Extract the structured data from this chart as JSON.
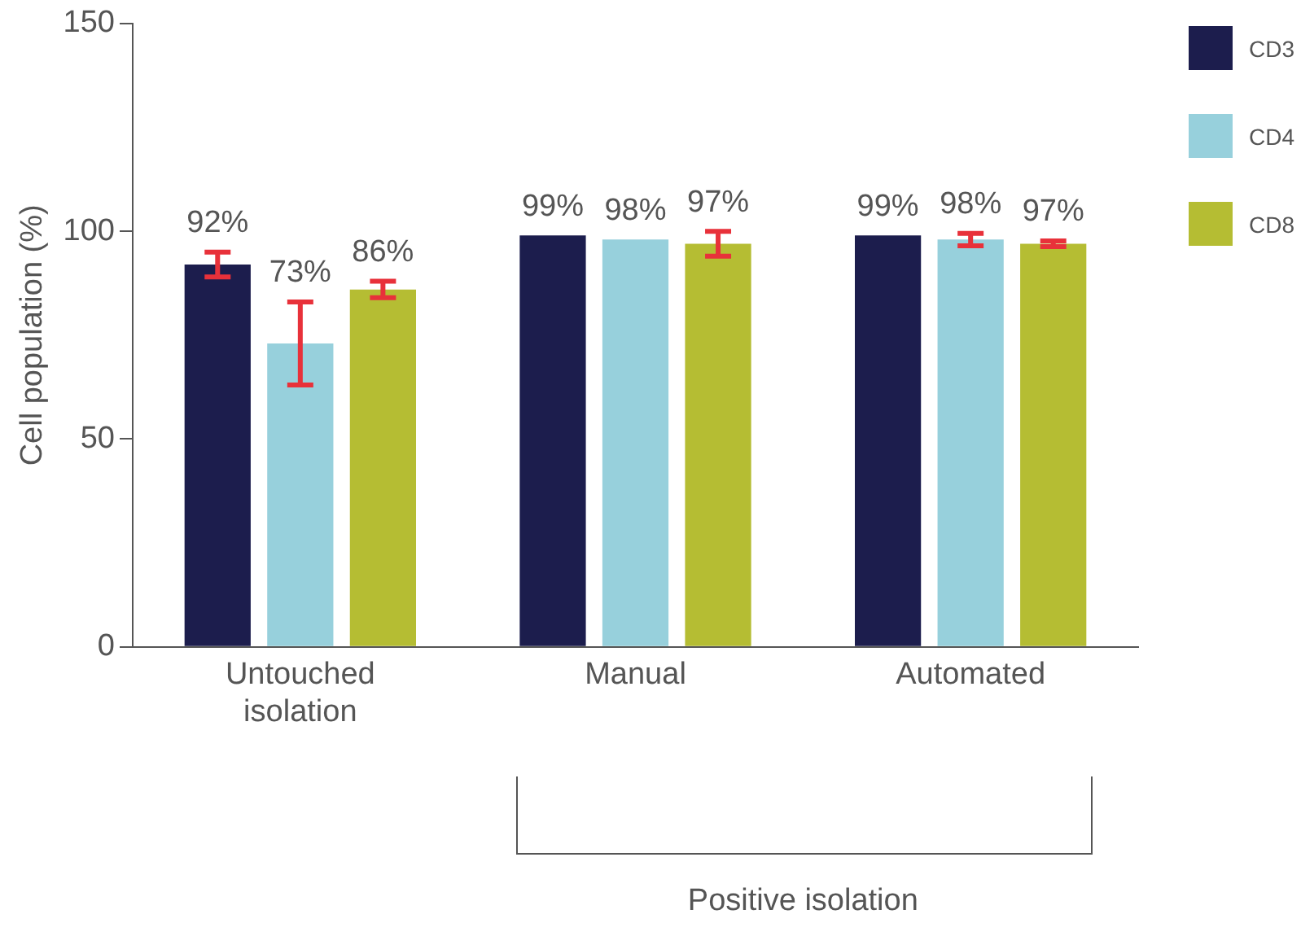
{
  "chart_data": {
    "type": "bar",
    "ylabel": "Cell population (%)",
    "categories": [
      "Untouched isolation",
      "Manual",
      "Automated"
    ],
    "series": [
      {
        "name": "CD3",
        "color": "#1c1d4d",
        "values": [
          92,
          99,
          99
        ],
        "errors": [
          3,
          null,
          null
        ],
        "value_labels": [
          "92%",
          "99%",
          "99%"
        ]
      },
      {
        "name": "CD4",
        "color": "#97d0dc",
        "values": [
          73,
          98,
          98
        ],
        "errors": [
          10,
          null,
          1.5
        ],
        "value_labels": [
          "73%",
          "98%",
          "98%"
        ]
      },
      {
        "name": "CD8",
        "color": "#b5bd33",
        "values": [
          86,
          97,
          97
        ],
        "errors": [
          2,
          3,
          0.7
        ],
        "value_labels": [
          "86%",
          "97%",
          "97%"
        ]
      }
    ],
    "ylim": [
      0,
      150
    ],
    "yticks": [
      0,
      50,
      100,
      150
    ],
    "grid": false,
    "legend": "right",
    "annotations": [
      "Positive isolation"
    ]
  }
}
